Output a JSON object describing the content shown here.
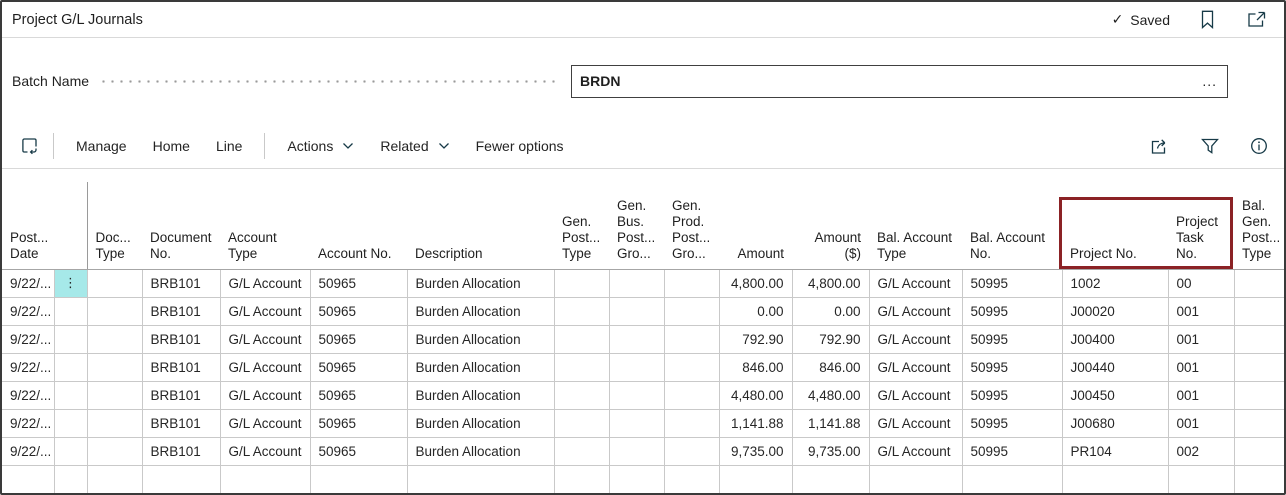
{
  "window": {
    "title": "Project G/L Journals",
    "saved_status": "Saved",
    "check_glyph": "✓"
  },
  "batch": {
    "label": "Batch Name",
    "value": "BRDN",
    "assist_edit": "..."
  },
  "toolbar": {
    "manage": "Manage",
    "home": "Home",
    "line": "Line",
    "actions": "Actions",
    "related": "Related",
    "fewer_options": "Fewer options"
  },
  "grid": {
    "row_marker_glyph": "⋮",
    "columns": [
      {
        "id": "post-date",
        "label": "Post...\nDate",
        "align": "left"
      },
      {
        "id": "row-marker",
        "label": "",
        "align": "center"
      },
      {
        "id": "doc-type",
        "label": "Doc...\nType",
        "align": "left"
      },
      {
        "id": "document-no",
        "label": "Document\nNo.",
        "align": "left"
      },
      {
        "id": "account-type",
        "label": "Account\nType",
        "align": "left"
      },
      {
        "id": "account-no",
        "label": "Account No.",
        "align": "left"
      },
      {
        "id": "description",
        "label": "Description",
        "align": "left"
      },
      {
        "id": "gen-post-type",
        "label": "Gen.\nPost...\nType",
        "align": "left"
      },
      {
        "id": "gen-bus-post-gro",
        "label": "Gen.\nBus.\nPost...\nGro...",
        "align": "left"
      },
      {
        "id": "gen-prod-post-gro",
        "label": "Gen.\nProd.\nPost...\nGro...",
        "align": "left"
      },
      {
        "id": "amount",
        "label": "Amount",
        "align": "right"
      },
      {
        "id": "amount-usd",
        "label": "Amount\n($)",
        "align": "right"
      },
      {
        "id": "bal-account-type",
        "label": "Bal. Account\nType",
        "align": "left"
      },
      {
        "id": "bal-account-no",
        "label": "Bal. Account\nNo.",
        "align": "left"
      },
      {
        "id": "project-no",
        "label": "Project No.",
        "align": "left"
      },
      {
        "id": "project-task-no",
        "label": "Project\nTask No.",
        "align": "left"
      },
      {
        "id": "bal-gen-post-type",
        "label": "Bal.\nGen.\nPost...\nType",
        "align": "left"
      }
    ],
    "rows": [
      {
        "selected": true,
        "cells": [
          "9/22/...",
          "⋮",
          "",
          "BRB101",
          "G/L Account",
          "50965",
          "Burden Allocation",
          "",
          "",
          "",
          "4,800.00",
          "4,800.00",
          "G/L Account",
          "50995",
          "1002",
          "00",
          ""
        ]
      },
      {
        "selected": false,
        "cells": [
          "9/22/...",
          "",
          "",
          "BRB101",
          "G/L Account",
          "50965",
          "Burden Allocation",
          "",
          "",
          "",
          "0.00",
          "0.00",
          "G/L Account",
          "50995",
          "J00020",
          "001",
          ""
        ]
      },
      {
        "selected": false,
        "cells": [
          "9/22/...",
          "",
          "",
          "BRB101",
          "G/L Account",
          "50965",
          "Burden Allocation",
          "",
          "",
          "",
          "792.90",
          "792.90",
          "G/L Account",
          "50995",
          "J00400",
          "001",
          ""
        ]
      },
      {
        "selected": false,
        "cells": [
          "9/22/...",
          "",
          "",
          "BRB101",
          "G/L Account",
          "50965",
          "Burden Allocation",
          "",
          "",
          "",
          "846.00",
          "846.00",
          "G/L Account",
          "50995",
          "J00440",
          "001",
          ""
        ]
      },
      {
        "selected": false,
        "cells": [
          "9/22/...",
          "",
          "",
          "BRB101",
          "G/L Account",
          "50965",
          "Burden Allocation",
          "",
          "",
          "",
          "4,480.00",
          "4,480.00",
          "G/L Account",
          "50995",
          "J00450",
          "001",
          ""
        ]
      },
      {
        "selected": false,
        "cells": [
          "9/22/...",
          "",
          "",
          "BRB101",
          "G/L Account",
          "50965",
          "Burden Allocation",
          "",
          "",
          "",
          "1,141.88",
          "1,141.88",
          "G/L Account",
          "50995",
          "J00680",
          "001",
          ""
        ]
      },
      {
        "selected": false,
        "cells": [
          "9/22/...",
          "",
          "",
          "BRB101",
          "G/L Account",
          "50965",
          "Burden Allocation",
          "",
          "",
          "",
          "9,735.00",
          "9,735.00",
          "G/L Account",
          "50995",
          "PR104",
          "002",
          ""
        ]
      },
      {
        "selected": false,
        "cells": [
          "",
          "",
          "",
          "",
          "",
          "",
          "",
          "",
          "",
          "",
          "",
          "",
          "",
          "",
          "",
          "",
          ""
        ]
      }
    ]
  },
  "colors": {
    "selection_highlight": "#A6E9E9",
    "callout_border": "#8B2225",
    "grid_line": "#C9C9C9"
  }
}
